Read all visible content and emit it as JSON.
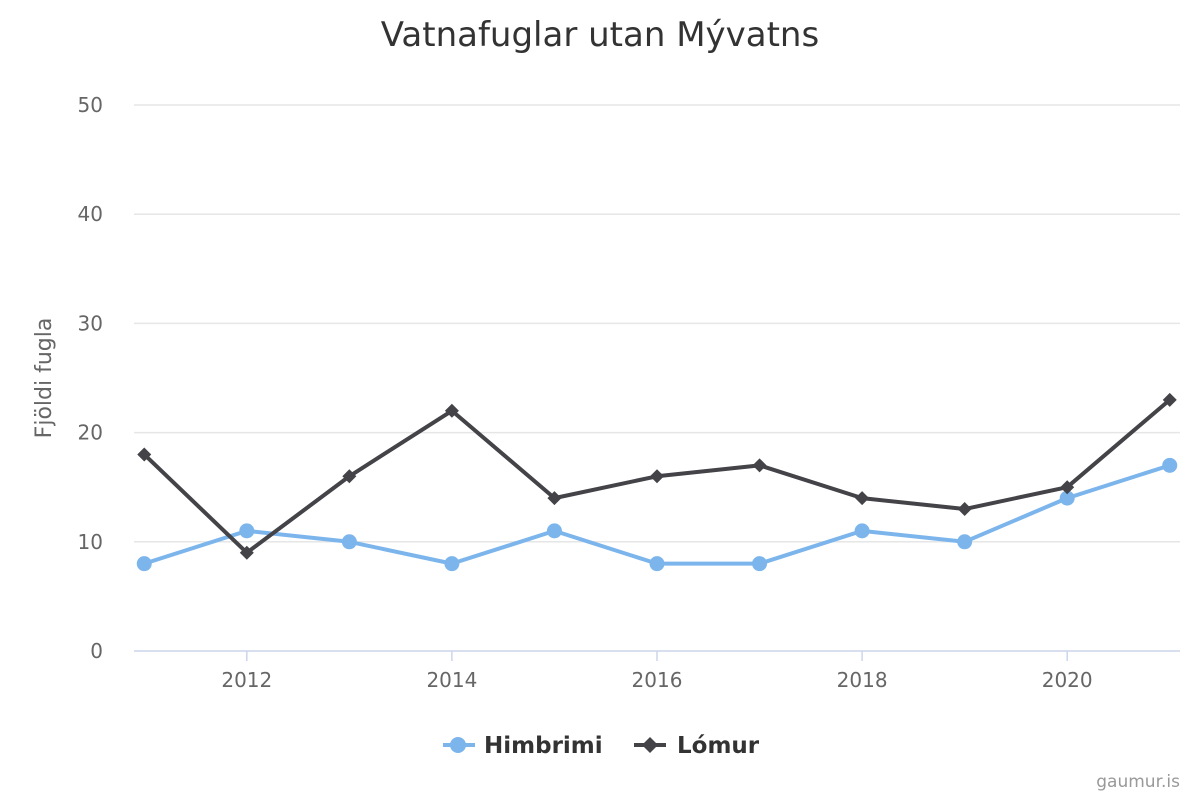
{
  "chart_data": {
    "type": "line",
    "title": "Vatnafuglar utan Mývatns",
    "xlabel": "",
    "ylabel": "Fjöldi fugla",
    "x": [
      2011,
      2012,
      2013,
      2014,
      2015,
      2016,
      2017,
      2018,
      2019,
      2020,
      2021
    ],
    "x_ticks": [
      "2012",
      "2014",
      "2016",
      "2018",
      "2020"
    ],
    "y_ticks": [
      "0",
      "10",
      "20",
      "30",
      "40",
      "50"
    ],
    "ylim": [
      0,
      50
    ],
    "grid": true,
    "legend_position": "bottom-center",
    "series": [
      {
        "name": "Himbrimi",
        "color": "#7cb5ec",
        "marker": "circle",
        "values": [
          8,
          11,
          10,
          8,
          11,
          8,
          8,
          11,
          10,
          14,
          17
        ]
      },
      {
        "name": "Lómur",
        "color": "#434348",
        "marker": "diamond",
        "values": [
          18,
          9,
          16,
          22,
          14,
          16,
          17,
          14,
          13,
          15,
          23
        ]
      }
    ],
    "credit": "gaumur.is"
  }
}
